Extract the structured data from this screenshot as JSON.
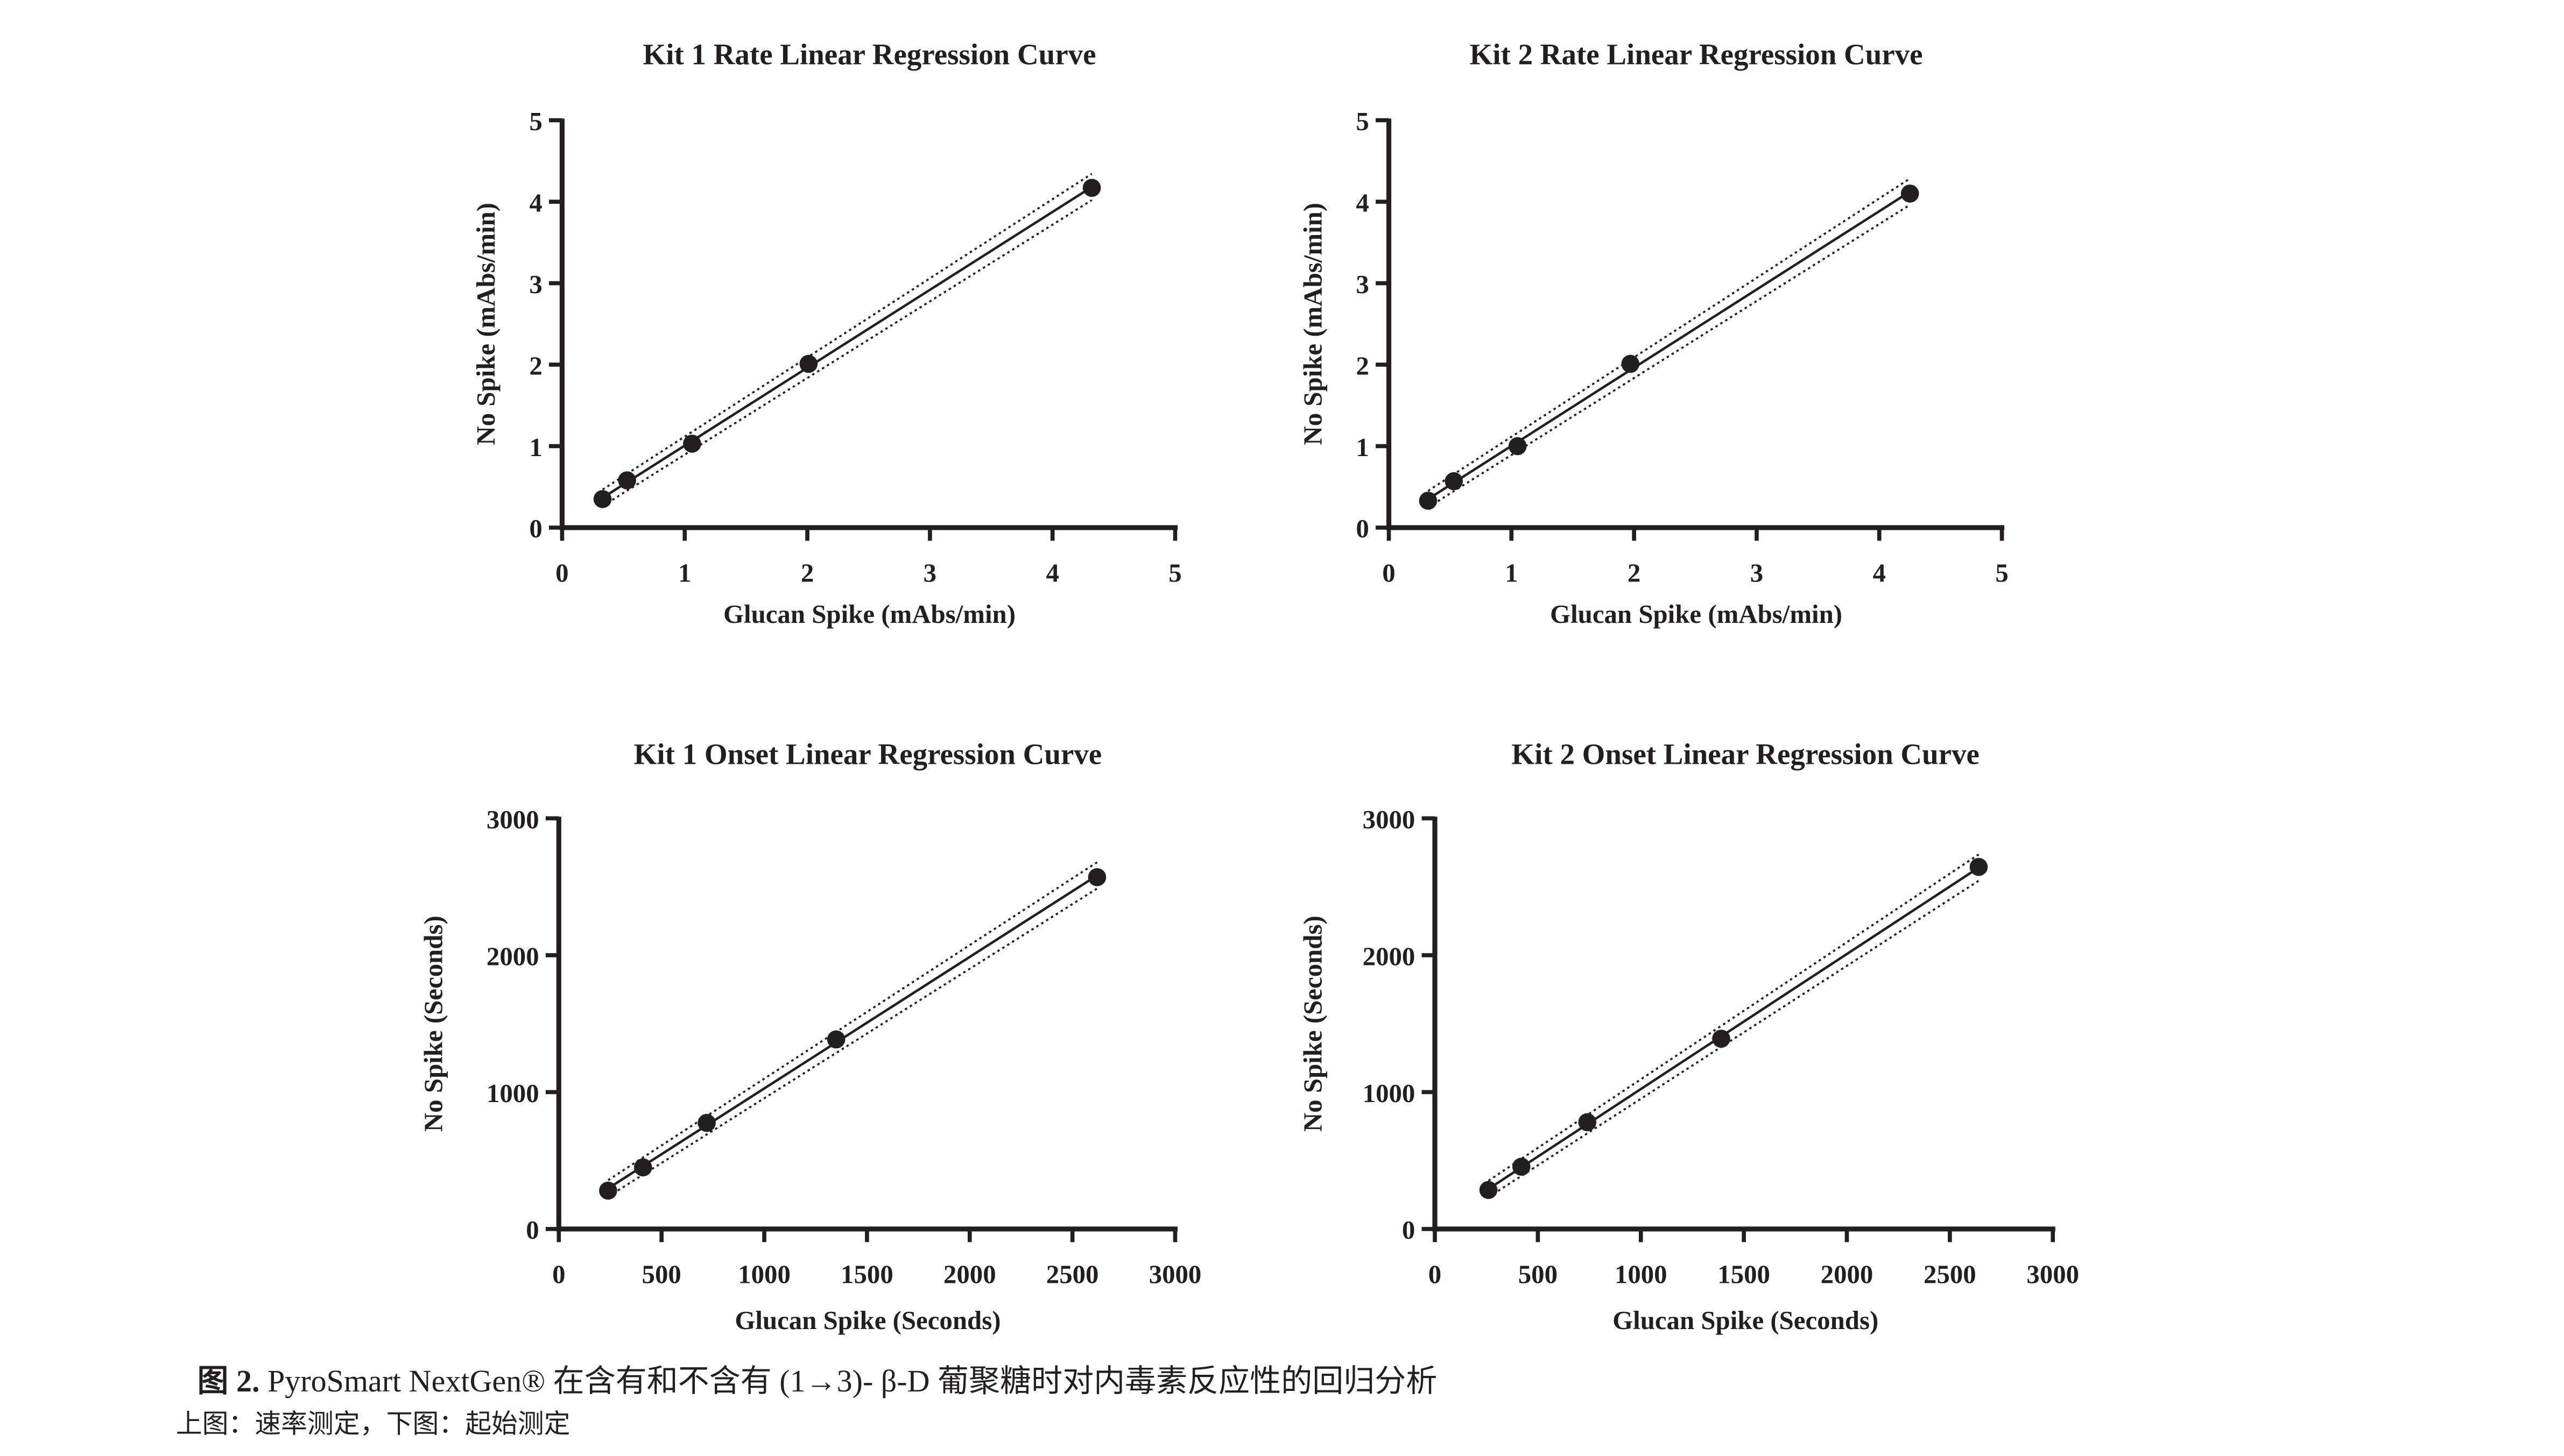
{
  "chart_data": [
    {
      "type": "scatter",
      "title": "Kit 1 Rate Linear Regression Curve",
      "xlabel": "Glucan Spike (mAbs/min)",
      "ylabel": "No Spike (mAbs/min)",
      "xlim": [
        0,
        5
      ],
      "ylim": [
        0,
        5
      ],
      "xticks": [
        "0",
        "1",
        "2",
        "3",
        "4",
        "5"
      ],
      "yticks": [
        "0",
        "1",
        "2",
        "3",
        "4",
        "5"
      ],
      "grid": false,
      "regression_line": true,
      "confidence_band": "dotted",
      "x": [
        0.33,
        0.53,
        1.06,
        2.01,
        4.32
      ],
      "y": [
        0.35,
        0.58,
        1.03,
        2.01,
        4.17
      ]
    },
    {
      "type": "scatter",
      "title": "Kit 2 Rate Linear Regression Curve",
      "xlabel": "Glucan Spike (mAbs/min)",
      "ylabel": "No Spike (mAbs/min)",
      "xlim": [
        0,
        5
      ],
      "ylim": [
        0,
        5
      ],
      "xticks": [
        "0",
        "1",
        "2",
        "3",
        "4",
        "5"
      ],
      "yticks": [
        "0",
        "1",
        "2",
        "3",
        "4",
        "5"
      ],
      "grid": false,
      "regression_line": true,
      "confidence_band": "dotted",
      "x": [
        0.32,
        0.53,
        1.05,
        1.97,
        4.25
      ],
      "y": [
        0.33,
        0.57,
        1.0,
        2.01,
        4.1
      ]
    },
    {
      "type": "scatter",
      "title": "Kit 1 Onset Linear Regression Curve",
      "xlabel": "Glucan Spike (Seconds)",
      "ylabel": "No Spike (Seconds)",
      "xlim": [
        0,
        3000
      ],
      "ylim": [
        0,
        3000
      ],
      "xticks": [
        "0",
        "500",
        "1000",
        "1500",
        "2000",
        "2500",
        "3000"
      ],
      "yticks": [
        "0",
        "1000",
        "2000",
        "3000"
      ],
      "grid": false,
      "regression_line": true,
      "confidence_band": "dotted",
      "x": [
        240,
        410,
        720,
        1350,
        2620
      ],
      "y": [
        280,
        450,
        775,
        1385,
        2570
      ]
    },
    {
      "type": "scatter",
      "title": "Kit 2 Onset Linear Regression Curve",
      "xlabel": "Glucan Spike (Seconds)",
      "ylabel": "No Spike (Seconds)",
      "xlim": [
        0,
        3000
      ],
      "ylim": [
        0,
        3000
      ],
      "xticks": [
        "0",
        "500",
        "1000",
        "1500",
        "2000",
        "2500",
        "3000"
      ],
      "yticks": [
        "0",
        "1000",
        "2000",
        "3000"
      ],
      "grid": false,
      "regression_line": true,
      "confidence_band": "dotted",
      "x": [
        260,
        420,
        740,
        1390,
        2640
      ],
      "y": [
        285,
        455,
        780,
        1390,
        2645
      ]
    }
  ],
  "caption": {
    "label": "图 2.",
    "text": " PyroSmart NextGen® 在含有和不含有 (1→3)- β-D 葡聚糖时对内毒素反应性的回归分析",
    "subtext": "上图：速率测定，下图：起始测定"
  },
  "colors": {
    "ink": "#231f20"
  }
}
